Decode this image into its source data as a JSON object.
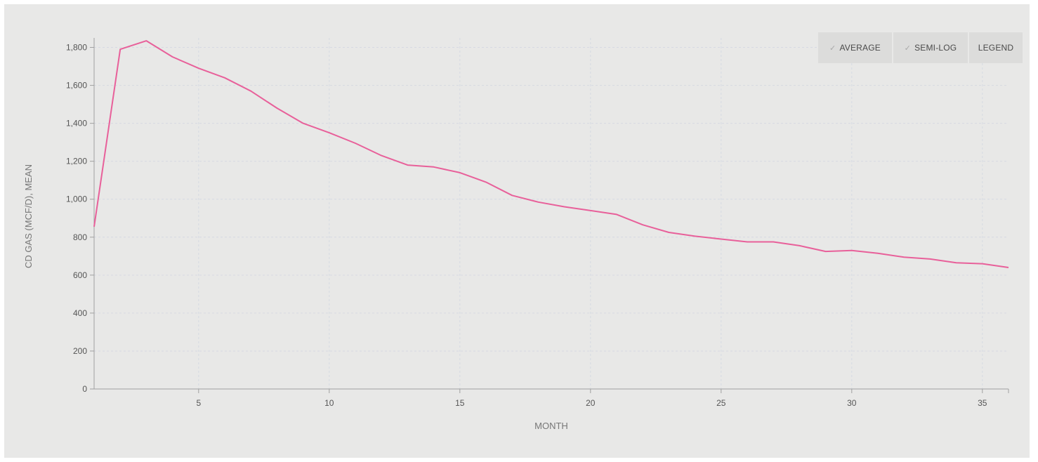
{
  "toolbar": {
    "average_label": "AVERAGE",
    "semilog_label": "SEMI-LOG",
    "legend_label": "LEGEND",
    "check_icon": "check-icon"
  },
  "colors": {
    "line": "#e8609a",
    "panel_bg": "#e8e8e7",
    "grid": "#d6d9e2",
    "axis": "#a0a0a0"
  },
  "chart_data": {
    "type": "line",
    "xlabel": "MONTH",
    "ylabel": "CD GAS (MCF/D), MEAN",
    "xlim": [
      1,
      36
    ],
    "ylim": [
      0,
      1850
    ],
    "x_ticks": [
      5,
      10,
      15,
      20,
      25,
      30,
      35
    ],
    "y_ticks": [
      0,
      200,
      400,
      600,
      800,
      1000,
      1200,
      1400,
      1600,
      1800
    ],
    "y_tick_labels": [
      "0",
      "200",
      "400",
      "600",
      "800",
      "1,000",
      "1,200",
      "1,400",
      "1,600",
      "1,800"
    ],
    "grid": true,
    "series": [
      {
        "x": [
          1,
          2,
          3,
          4,
          5,
          6,
          7,
          8,
          9,
          10,
          11,
          12,
          13,
          14,
          15,
          16,
          17,
          18,
          19,
          20,
          21,
          22,
          23,
          24,
          25,
          26,
          27,
          28,
          29,
          30,
          31,
          32,
          33,
          34,
          35,
          36
        ],
        "values": [
          855,
          1790,
          1835,
          1750,
          1690,
          1640,
          1570,
          1480,
          1400,
          1350,
          1295,
          1230,
          1180,
          1170,
          1140,
          1090,
          1020,
          985,
          960,
          940,
          920,
          865,
          825,
          805,
          790,
          775,
          775,
          755,
          725,
          730,
          715,
          695,
          685,
          665,
          660,
          640
        ]
      }
    ]
  }
}
